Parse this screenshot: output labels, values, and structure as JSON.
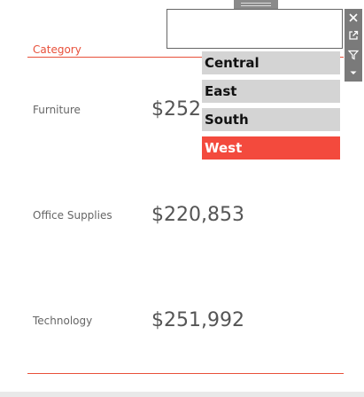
{
  "table": {
    "header": "Category",
    "rows": [
      {
        "category": "Furniture",
        "value": "$252,"
      },
      {
        "category": "Office Supplies",
        "value": "$220,853"
      },
      {
        "category": "Technology",
        "value": "$251,992"
      }
    ]
  },
  "filter": {
    "search_value": "",
    "items": [
      {
        "label": "Central",
        "selected": false
      },
      {
        "label": "East",
        "selected": false
      },
      {
        "label": "South",
        "selected": false
      },
      {
        "label": "West",
        "selected": true
      }
    ],
    "toolbar": {
      "icons": [
        "close-icon",
        "external-link-icon",
        "filter-icon",
        "caret-down-icon"
      ]
    }
  },
  "colors": {
    "accent": "#e8503a",
    "selected_fill": "#f34a3d",
    "item_fill": "#d4d4d4",
    "toolbar_fill": "#7a7a7a"
  }
}
